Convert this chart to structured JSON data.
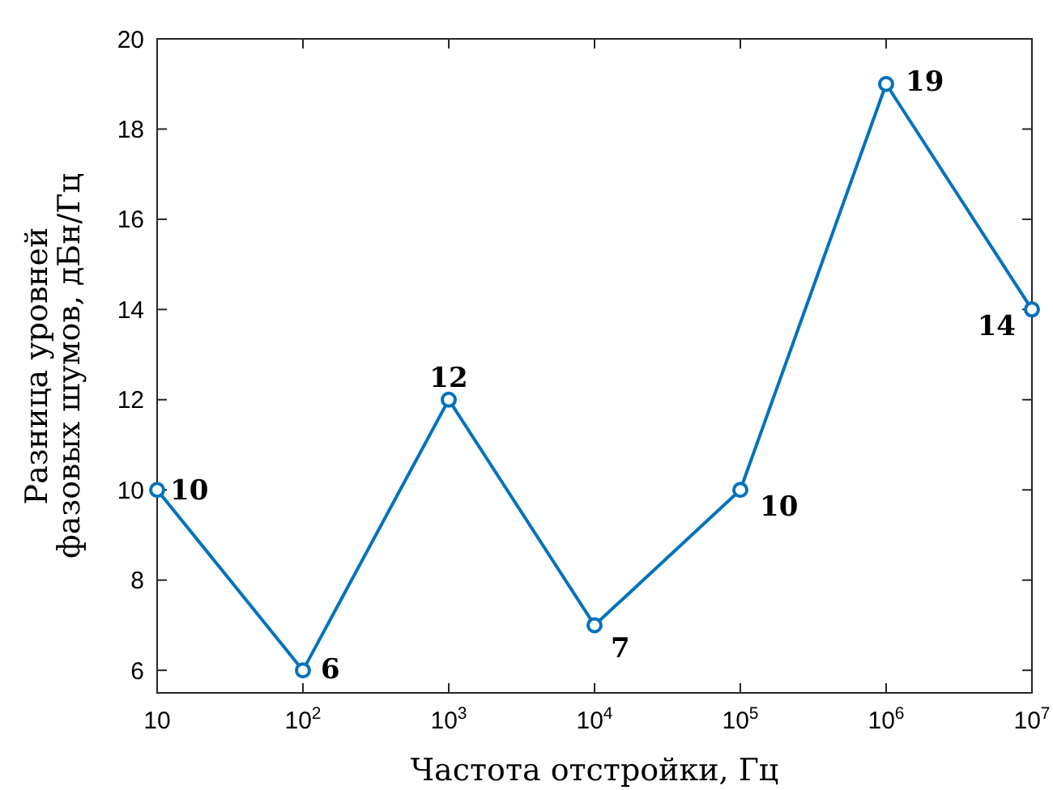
{
  "chart_data": {
    "type": "line",
    "xlabel": "Частота отстройки, Гц",
    "ylabel": "Разница уровней\nфазовых шумов, дБн/Гц",
    "x": [
      10,
      100,
      1000,
      10000,
      100000,
      1000000,
      10000000
    ],
    "series": [
      {
        "color": "#0072bd",
        "values": [
          10,
          6,
          12,
          7,
          10,
          19,
          14
        ]
      }
    ],
    "log": "x",
    "xlim": [
      10,
      10000000
    ],
    "xticks": [
      10,
      {
        "value": 100,
        "label": "10$^{2}$"
      },
      {
        "value": 1000,
        "label": "10$^{3}$"
      },
      {
        "value": 10000,
        "label": "10$^{4}$"
      },
      {
        "value": 100000,
        "label": "10$^{5}$"
      },
      {
        "value": 1000000,
        "label": "10$^{6}$"
      },
      {
        "value": 10000000,
        "label": "10$^{7}$"
      }
    ],
    "ylim": [
      5.5,
      20
    ],
    "yticks": [
      6,
      8,
      10,
      12,
      14,
      16,
      18,
      20
    ],
    "grid": false,
    "marker": "circle",
    "line_style": "solid",
    "data_labels": true
  }
}
